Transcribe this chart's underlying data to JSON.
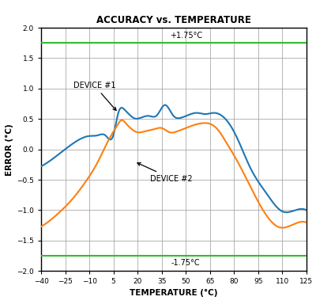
{
  "title": "ACCURACY vs. TEMPERATURE",
  "xlabel": "TEMPERATURE (°C)",
  "ylabel": "ERROR (°C)",
  "xlim": [
    -40,
    125
  ],
  "ylim": [
    -2.0,
    2.0
  ],
  "xticks": [
    -40,
    -25,
    -10,
    5,
    20,
    35,
    50,
    65,
    80,
    95,
    110,
    125
  ],
  "yticks": [
    -2.0,
    -1.5,
    -1.0,
    -0.5,
    0.0,
    0.5,
    1.0,
    1.5,
    2.0
  ],
  "hline_pos": 1.75,
  "hline_neg": -1.75,
  "hline_color": "#33bb33",
  "hline_label_pos": "+1.75°C",
  "hline_label_neg": "-1.75°C",
  "device1_color": "#1f77b4",
  "device2_color": "#ff7f0e",
  "device1_label": "DEVICE #1",
  "device2_label": "DEVICE #2",
  "background_color": "#ffffff",
  "grid_color": "#999999",
  "d1_x": [
    -40,
    -30,
    -20,
    -10,
    -5,
    0,
    5,
    8,
    12,
    15,
    18,
    22,
    27,
    32,
    37,
    42,
    47,
    52,
    57,
    62,
    67,
    72,
    77,
    82,
    90,
    100,
    110,
    118,
    125
  ],
  "d1_y": [
    -0.28,
    -0.1,
    0.1,
    0.22,
    0.23,
    0.23,
    0.24,
    0.6,
    0.65,
    0.57,
    0.51,
    0.52,
    0.55,
    0.56,
    0.73,
    0.56,
    0.52,
    0.57,
    0.6,
    0.58,
    0.6,
    0.56,
    0.42,
    0.18,
    -0.3,
    -0.72,
    -1.02,
    -1.0,
    -1.0
  ],
  "d2_x": [
    -40,
    -35,
    -28,
    -20,
    -12,
    -5,
    0,
    4,
    7,
    10,
    13,
    16,
    20,
    25,
    30,
    35,
    40,
    45,
    50,
    55,
    60,
    65,
    70,
    75,
    80,
    88,
    98,
    108,
    118,
    125
  ],
  "d2_y": [
    -1.27,
    -1.18,
    -1.02,
    -0.8,
    -0.52,
    -0.22,
    0.05,
    0.25,
    0.38,
    0.48,
    0.42,
    0.34,
    0.28,
    0.3,
    0.33,
    0.35,
    0.28,
    0.3,
    0.35,
    0.4,
    0.43,
    0.42,
    0.32,
    0.12,
    -0.1,
    -0.5,
    -1.0,
    -1.28,
    -1.22,
    -1.2
  ]
}
